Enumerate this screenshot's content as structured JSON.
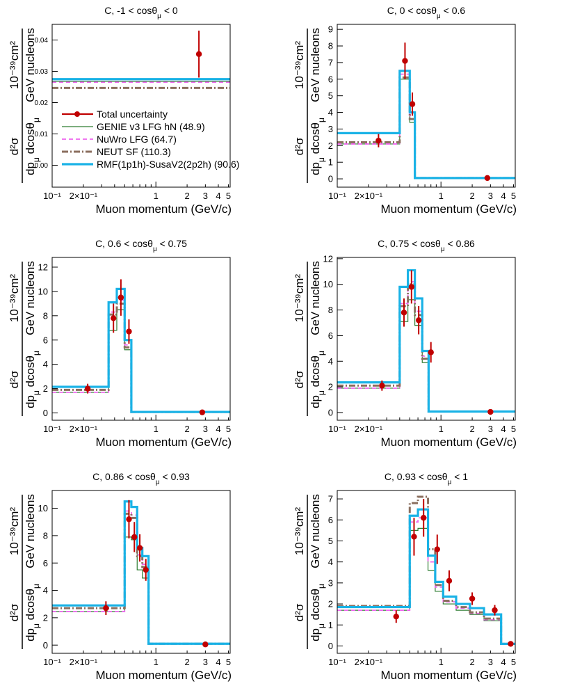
{
  "figure": {
    "xlabel": "Muon momentum (GeV/c)",
    "ylabel": {
      "num": "d²σ",
      "den": "dp_μ dcosθ_μ",
      "unit_num": "10⁻³⁹cm²",
      "unit_den": "GeV nucleons"
    },
    "x_ticks": [
      {
        "v": 0.1,
        "label": "10⁻¹"
      },
      {
        "v": 0.2,
        "label": "2×10⁻¹"
      },
      {
        "v": 1,
        "label": "1"
      },
      {
        "v": 2,
        "label": "2"
      },
      {
        "v": 3,
        "label": "3"
      },
      {
        "v": 4,
        "label": "4"
      },
      {
        "v": 5,
        "label": "5"
      }
    ],
    "styles": {
      "data": {
        "color": "#c00000"
      },
      "genie": {
        "color": "#2e7d32"
      },
      "nuwro": {
        "color": "#ee66ee"
      },
      "neut": {
        "color": "#8b6f5f"
      },
      "rmf": {
        "color": "#19b2e6"
      }
    },
    "legend": [
      {
        "key": "data",
        "label": "Total uncertainty"
      },
      {
        "key": "genie",
        "label": "GENIE v3 LFG hN (48.9)"
      },
      {
        "key": "nuwro",
        "label": "NuWro LFG (64.7)"
      },
      {
        "key": "neut",
        "label": "NEUT SF (110.3)"
      },
      {
        "key": "rmf",
        "label": "RMF(1p1h)-SusaV2(2p2h) (90.6)"
      }
    ]
  },
  "chart_data": [
    {
      "type": "histogram",
      "title": "C, -1 < cosθ_μ < 0",
      "xlim": [
        0.1,
        5.2
      ],
      "ylim": [
        -0.007,
        0.045
      ],
      "yticks": [
        0,
        0.01,
        0.02,
        0.03,
        0.04
      ],
      "ytick_labels": [
        "0.00",
        "0.01",
        "0.02",
        "0.03",
        "0.04"
      ],
      "unit_exponent": "10⁻³⁹",
      "legend_inside": true,
      "bins": [
        0.1,
        5.2
      ],
      "models": {
        "rmf": [
          0.0275
        ],
        "nuwro": [
          0.0265
        ],
        "genie": [
          0.0268
        ],
        "neut": [
          0.0247
        ]
      },
      "points": [
        {
          "x": 2.6,
          "y": 0.0355,
          "err": 0.0075
        }
      ]
    },
    {
      "type": "histogram",
      "title": "C, 0 < cosθ_μ < 0.6",
      "xlim": [
        0.1,
        5.2
      ],
      "ylim": [
        -0.5,
        9.3
      ],
      "yticks": [
        0,
        1,
        2,
        3,
        4,
        5,
        6,
        7,
        8,
        9
      ],
      "ytick_labels": [
        "0",
        "1",
        "2",
        "3",
        "4",
        "5",
        "6",
        "7",
        "8",
        "9"
      ],
      "bins": [
        0.1,
        0.4,
        0.5,
        0.56,
        0.62,
        5.2
      ],
      "models": {
        "rmf": [
          2.75,
          6.5,
          4.0,
          0.05,
          0.05
        ],
        "nuwro": [
          2.1,
          6.3,
          3.8,
          0.05,
          0.05
        ],
        "genie": [
          2.1,
          6.0,
          3.4,
          0.05,
          0.05
        ],
        "neut": [
          2.2,
          6.1,
          3.6,
          0.05,
          0.05
        ]
      },
      "points": [
        {
          "x": 0.25,
          "y": 2.3,
          "err": 0.4
        },
        {
          "x": 0.45,
          "y": 7.1,
          "err": 1.1
        },
        {
          "x": 0.53,
          "y": 4.5,
          "err": 0.7
        },
        {
          "x": 2.8,
          "y": 0.05,
          "err": 0.02
        }
      ]
    },
    {
      "type": "histogram",
      "title": "C, 0.6 < cosθ_μ < 0.75",
      "xlim": [
        0.1,
        5.2
      ],
      "ylim": [
        -0.6,
        12.8
      ],
      "yticks": [
        0,
        2,
        4,
        6,
        8,
        10,
        12
      ],
      "ytick_labels": [
        "0",
        "2",
        "4",
        "6",
        "8",
        "10",
        "12"
      ],
      "bins": [
        0.1,
        0.35,
        0.42,
        0.5,
        0.58,
        0.68,
        5.2
      ],
      "models": {
        "rmf": [
          2.15,
          9.1,
          10.2,
          6.0,
          0.08,
          0.08
        ],
        "nuwro": [
          1.7,
          8.3,
          9.3,
          5.6,
          0.08,
          0.08
        ],
        "genie": [
          1.7,
          6.8,
          8.5,
          5.2,
          0.08,
          0.08
        ],
        "neut": [
          1.9,
          8.1,
          9.0,
          5.4,
          0.08,
          0.08
        ]
      },
      "points": [
        {
          "x": 0.22,
          "y": 2.0,
          "err": 0.4
        },
        {
          "x": 0.39,
          "y": 7.8,
          "err": 1.2
        },
        {
          "x": 0.46,
          "y": 9.5,
          "err": 1.5
        },
        {
          "x": 0.55,
          "y": 6.7,
          "err": 1.0
        },
        {
          "x": 2.8,
          "y": 0.05,
          "err": 0.02
        }
      ]
    },
    {
      "type": "histogram",
      "title": "C, 0.75 < cosθ_μ < 0.86",
      "xlim": [
        0.1,
        5.2
      ],
      "ylim": [
        -0.6,
        12.1
      ],
      "yticks": [
        0,
        2,
        4,
        6,
        8,
        10,
        12
      ],
      "ytick_labels": [
        "0",
        "2",
        "4",
        "6",
        "8",
        "10",
        "12"
      ],
      "bins": [
        0.1,
        0.4,
        0.48,
        0.56,
        0.66,
        0.76,
        0.84,
        5.2
      ],
      "models": {
        "rmf": [
          2.35,
          9.8,
          11.1,
          8.9,
          4.8,
          0.08,
          0.08
        ],
        "nuwro": [
          1.9,
          8.5,
          10.2,
          7.9,
          4.4,
          0.08,
          0.08
        ],
        "genie": [
          1.9,
          7.1,
          8.8,
          6.8,
          3.9,
          0.08,
          0.08
        ],
        "neut": [
          2.1,
          8.3,
          10.0,
          7.6,
          4.2,
          0.08,
          0.08
        ]
      },
      "points": [
        {
          "x": 0.27,
          "y": 2.1,
          "err": 0.4
        },
        {
          "x": 0.44,
          "y": 7.8,
          "err": 1.1
        },
        {
          "x": 0.52,
          "y": 9.8,
          "err": 1.3
        },
        {
          "x": 0.61,
          "y": 7.2,
          "err": 1.1
        },
        {
          "x": 0.8,
          "y": 4.7,
          "err": 0.8
        },
        {
          "x": 3.0,
          "y": 0.05,
          "err": 0.02
        }
      ]
    },
    {
      "type": "histogram",
      "title": "C, 0.86 < cosθ_μ < 0.93",
      "xlim": [
        0.1,
        5.2
      ],
      "ylim": [
        -0.6,
        11.3
      ],
      "yticks": [
        0,
        2,
        4,
        6,
        8,
        10
      ],
      "ytick_labels": [
        "0",
        "2",
        "4",
        "6",
        "8",
        "10"
      ],
      "bins": [
        0.1,
        0.5,
        0.58,
        0.66,
        0.74,
        0.85,
        5.2
      ],
      "models": {
        "rmf": [
          2.9,
          10.5,
          10.1,
          7.1,
          6.5,
          0.1
        ],
        "nuwro": [
          2.45,
          9.8,
          9.5,
          6.6,
          5.9,
          0.1
        ],
        "genie": [
          2.45,
          7.9,
          7.7,
          5.5,
          4.9,
          0.1
        ],
        "neut": [
          2.7,
          9.6,
          9.3,
          6.5,
          5.7,
          0.1
        ]
      },
      "points": [
        {
          "x": 0.33,
          "y": 2.7,
          "err": 0.5
        },
        {
          "x": 0.55,
          "y": 9.2,
          "err": 1.4
        },
        {
          "x": 0.62,
          "y": 7.9,
          "err": 1.1
        },
        {
          "x": 0.7,
          "y": 7.1,
          "err": 1.0
        },
        {
          "x": 0.8,
          "y": 5.5,
          "err": 0.8
        },
        {
          "x": 3.0,
          "y": 0.05,
          "err": 0.02
        }
      ]
    },
    {
      "type": "histogram",
      "title": "C, 0.93 < cosθ_μ < 1",
      "xlim": [
        0.1,
        5.2
      ],
      "ylim": [
        -0.35,
        7.4
      ],
      "yticks": [
        0,
        1,
        2,
        3,
        4,
        5,
        6,
        7
      ],
      "ytick_labels": [
        "0",
        "1",
        "2",
        "3",
        "4",
        "5",
        "6",
        "7"
      ],
      "bins": [
        0.1,
        0.5,
        0.6,
        0.75,
        0.88,
        1.05,
        1.4,
        1.9,
        2.6,
        3.8,
        4.5,
        5.2
      ],
      "models": {
        "rmf": [
          1.85,
          6.2,
          6.5,
          4.3,
          3.05,
          2.35,
          2.0,
          1.8,
          1.5,
          0.1,
          0.1
        ],
        "nuwro": [
          1.7,
          5.9,
          6.1,
          4.0,
          2.8,
          2.1,
          1.8,
          1.55,
          1.25,
          0.1,
          0.1
        ],
        "genie": [
          1.7,
          5.5,
          5.6,
          3.6,
          2.6,
          2.0,
          1.7,
          1.5,
          1.2,
          0.1,
          0.1
        ],
        "neut": [
          1.9,
          6.8,
          7.1,
          4.6,
          2.9,
          2.15,
          1.85,
          1.6,
          1.3,
          0.1,
          0.1
        ]
      },
      "points": [
        {
          "x": 0.37,
          "y": 1.4,
          "err": 0.3
        },
        {
          "x": 0.55,
          "y": 5.2,
          "err": 0.9
        },
        {
          "x": 0.68,
          "y": 6.1,
          "err": 0.9
        },
        {
          "x": 0.92,
          "y": 4.6,
          "err": 0.7
        },
        {
          "x": 1.2,
          "y": 3.1,
          "err": 0.5
        },
        {
          "x": 2.0,
          "y": 2.25,
          "err": 0.3
        },
        {
          "x": 3.3,
          "y": 1.7,
          "err": 0.25
        },
        {
          "x": 4.7,
          "y": 0.1,
          "err": 0.03
        }
      ]
    }
  ]
}
